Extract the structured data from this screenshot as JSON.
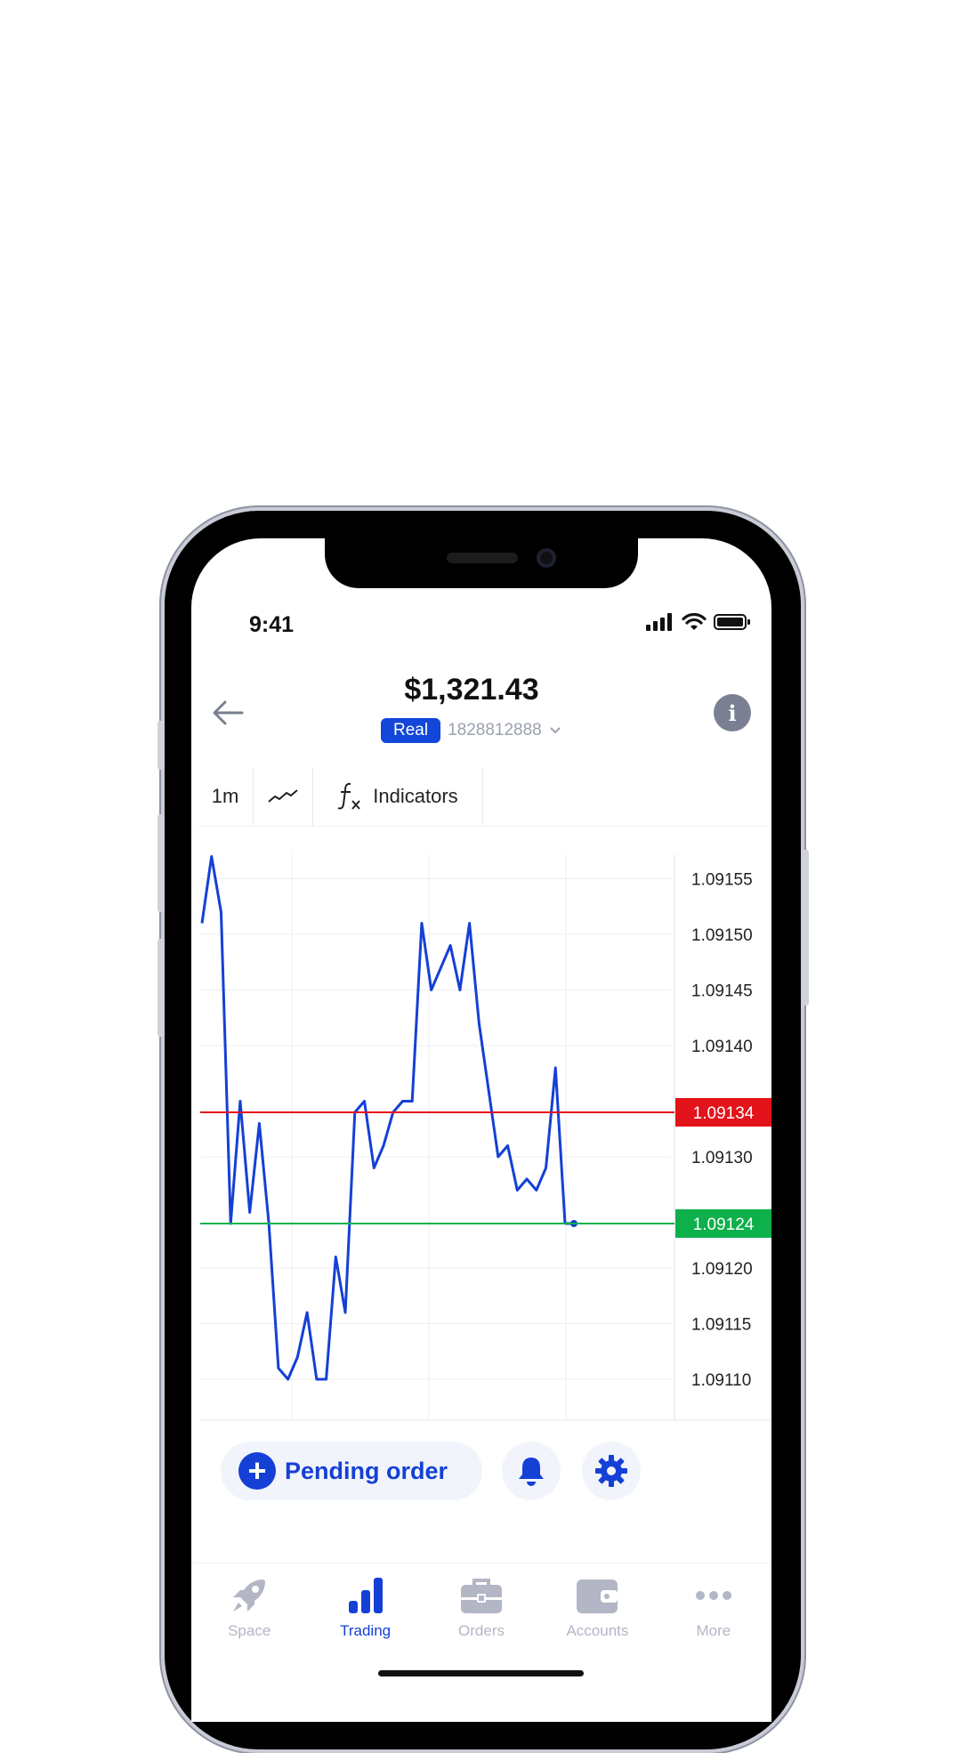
{
  "status": {
    "time": "9:41"
  },
  "header": {
    "balance": "$1,321.43",
    "account_type": "Real",
    "account_number": "1828812888"
  },
  "toolbar": {
    "timeframe": "1m",
    "indicators_label": "Indicators"
  },
  "chart_data": {
    "type": "line",
    "y_ticks": [
      "1.09155",
      "1.09150",
      "1.09145",
      "1.09140",
      "1.09130",
      "1.09120",
      "1.09115",
      "1.09110"
    ],
    "ylim": [
      1.09106,
      1.09158
    ],
    "ask_line": {
      "value": 1.09134,
      "label": "1.09134",
      "color": "#e3131b"
    },
    "bid_line": {
      "value": 1.09124,
      "label": "1.09124",
      "color": "#0db04b"
    },
    "series_color": "#1440d6",
    "grid": true,
    "values": [
      1.09151,
      1.09157,
      1.09152,
      1.09124,
      1.09135,
      1.09125,
      1.09133,
      1.09124,
      1.09111,
      1.0911,
      1.09112,
      1.09116,
      1.0911,
      1.0911,
      1.09121,
      1.09116,
      1.09134,
      1.09135,
      1.09129,
      1.09131,
      1.09134,
      1.09135,
      1.09135,
      1.09151,
      1.09145,
      1.09147,
      1.09149,
      1.09145,
      1.09151,
      1.09142,
      1.09136,
      1.0913,
      1.09131,
      1.09127,
      1.09128,
      1.09127,
      1.09129,
      1.09138,
      1.09124
    ]
  },
  "actions": {
    "pending_order_label": "Pending order"
  },
  "nav": {
    "items": [
      {
        "label": "Space",
        "icon": "rocket-icon"
      },
      {
        "label": "Trading",
        "icon": "bar-chart-icon",
        "active": true
      },
      {
        "label": "Orders",
        "icon": "briefcase-icon"
      },
      {
        "label": "Accounts",
        "icon": "wallet-icon"
      },
      {
        "label": "More",
        "icon": "more-icon"
      }
    ]
  },
  "colors": {
    "accent": "#1440d6",
    "nav_inactive": "#b3b6c4"
  }
}
